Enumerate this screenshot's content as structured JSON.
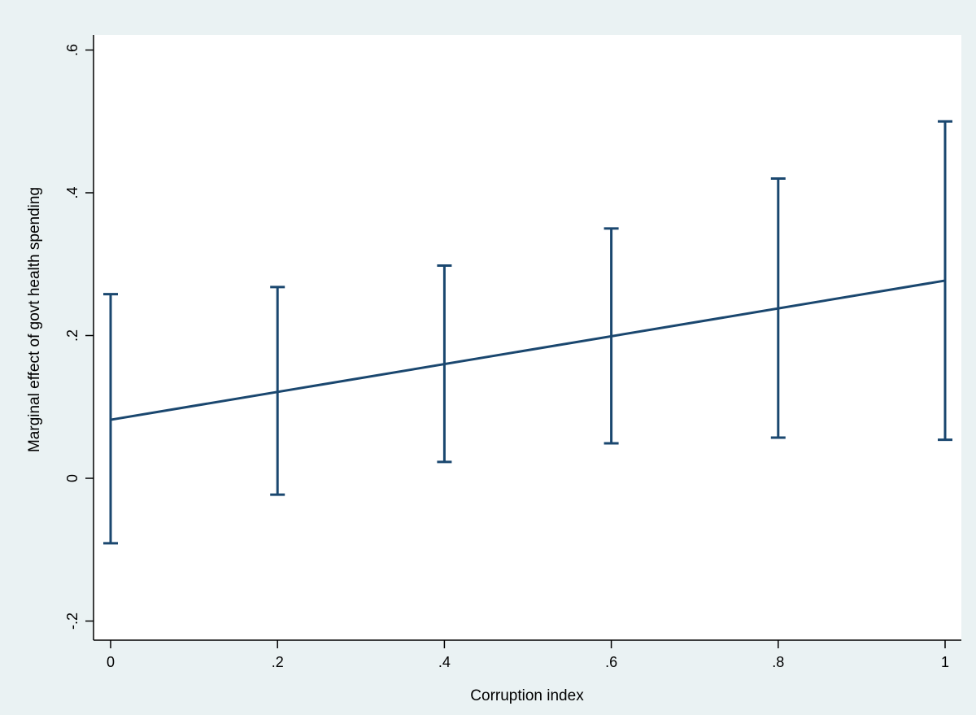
{
  "chart_data": {
    "type": "line",
    "title": "",
    "xlabel": "Corruption index",
    "ylabel": "Marginal effect of govt health spending",
    "xlim": [
      0,
      1
    ],
    "ylim": [
      -0.2,
      0.6
    ],
    "x_ticks": [
      {
        "value": 0,
        "label": "0"
      },
      {
        "value": 0.2,
        "label": ".2"
      },
      {
        "value": 0.4,
        "label": ".4"
      },
      {
        "value": 0.6,
        "label": ".6"
      },
      {
        "value": 0.8,
        "label": ".8"
      },
      {
        "value": 1,
        "label": "1"
      }
    ],
    "y_ticks": [
      {
        "value": -0.2,
        "label": "-.2"
      },
      {
        "value": 0,
        "label": "0"
      },
      {
        "value": 0.2,
        "label": ".2"
      },
      {
        "value": 0.4,
        "label": ".4"
      },
      {
        "value": 0.6,
        "label": ".6"
      }
    ],
    "grid": false,
    "line": {
      "x": [
        0,
        1
      ],
      "y": [
        0.082,
        0.277
      ]
    },
    "error_bars": [
      {
        "x": 0,
        "low": -0.091,
        "high": 0.258
      },
      {
        "x": 0.2,
        "low": -0.023,
        "high": 0.268
      },
      {
        "x": 0.4,
        "low": 0.023,
        "high": 0.298
      },
      {
        "x": 0.6,
        "low": 0.049,
        "high": 0.35
      },
      {
        "x": 0.8,
        "low": 0.057,
        "high": 0.42
      },
      {
        "x": 1,
        "low": 0.054,
        "high": 0.5
      }
    ],
    "colors": {
      "series": "#1a476f",
      "plot_background": "#ffffff",
      "page_background": "#eaf2f3",
      "axis": "#000000"
    }
  }
}
